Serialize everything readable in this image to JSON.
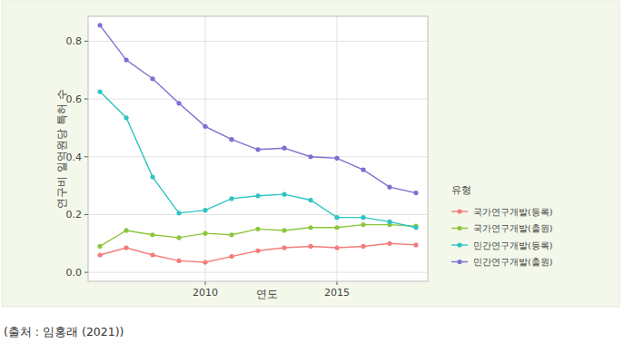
{
  "chart_data": {
    "type": "line",
    "x_label": "연도",
    "y_label": "연구비 일억원당 특허 수",
    "legend_title": "유형",
    "caption": "(출처 : 임홍래 (2021))",
    "x": [
      2006,
      2007,
      2008,
      2009,
      2010,
      2011,
      2012,
      2013,
      2014,
      2015,
      2016,
      2017,
      2018
    ],
    "xlim": [
      2005.55,
      2018.45
    ],
    "xticks": [
      2010,
      2015
    ],
    "ylim": [
      -0.031,
      0.886
    ],
    "yticks": [
      {
        "value": 0,
        "label": "0.0"
      },
      0.2,
      0.4,
      0.6,
      0.8
    ],
    "grid": true,
    "legend": "right",
    "marker": "circle",
    "series": [
      {
        "name": "국가연구개발(등록)",
        "color": "#f47c7c",
        "values": [
          0.06,
          0.085,
          0.06,
          0.04,
          0.035,
          0.055,
          0.075,
          0.085,
          0.09,
          0.085,
          0.09,
          0.1,
          0.095
        ]
      },
      {
        "name": "국가연구개발(출원)",
        "color": "#8cc63f",
        "values": [
          0.09,
          0.145,
          0.13,
          0.12,
          0.135,
          0.13,
          0.15,
          0.145,
          0.155,
          0.155,
          0.165,
          0.165,
          0.16
        ]
      },
      {
        "name": "민간연구개발(등록)",
        "color": "#2ec4c4",
        "values": [
          0.625,
          0.535,
          0.33,
          0.205,
          0.215,
          0.255,
          0.265,
          0.27,
          0.25,
          0.19,
          0.19,
          0.175,
          0.155
        ]
      },
      {
        "name": "민간연구개발(출원)",
        "color": "#7b6fd0",
        "values": [
          0.855,
          0.735,
          0.67,
          0.585,
          0.505,
          0.46,
          0.425,
          0.43,
          0.4,
          0.395,
          0.355,
          0.295,
          0.275
        ]
      }
    ]
  }
}
